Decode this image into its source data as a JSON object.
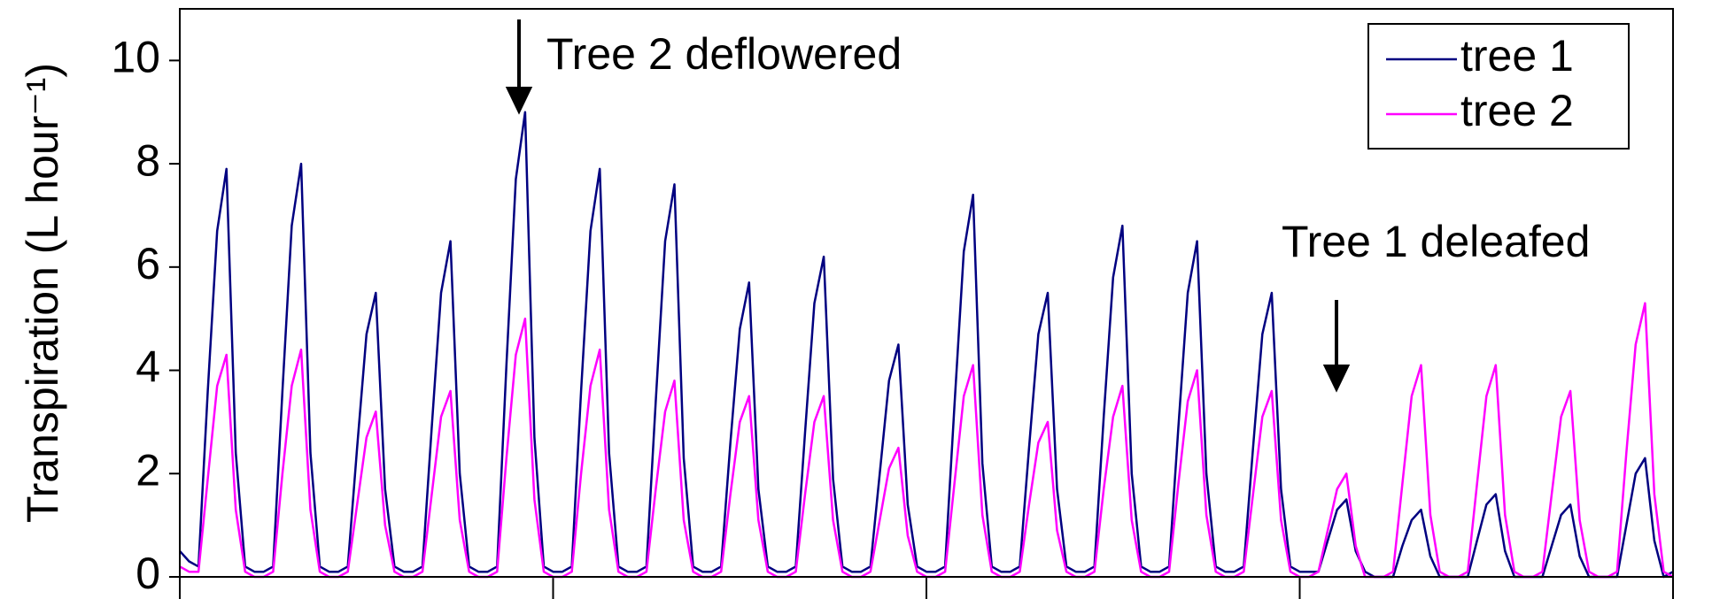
{
  "chart_data": {
    "type": "line",
    "y_label": "Transpiration (L hour⁻¹)",
    "annotations": [
      "Tree 2 deflowered",
      "Tree 1 deleafed"
    ],
    "x": [
      0,
      0.125,
      0.25,
      0.375,
      0.5,
      0.625,
      0.75,
      0.875,
      1,
      1.125,
      1.25,
      1.375,
      1.5,
      1.625,
      1.75,
      1.875,
      2,
      2.125,
      2.25,
      2.375,
      2.5,
      2.625,
      2.75,
      2.875,
      3,
      3.125,
      3.25,
      3.375,
      3.5,
      3.625,
      3.75,
      3.875,
      4,
      4.125,
      4.25,
      4.375,
      4.5,
      4.625,
      4.75,
      4.875,
      5,
      5.125,
      5.25,
      5.375,
      5.5,
      5.625,
      5.75,
      5.875,
      6,
      6.125,
      6.25,
      6.375,
      6.5,
      6.625,
      6.75,
      6.875,
      7,
      7.125,
      7.25,
      7.375,
      7.5,
      7.625,
      7.75,
      7.875,
      8,
      8.125,
      8.25,
      8.375,
      8.5,
      8.625,
      8.75,
      8.875,
      9,
      9.125,
      9.25,
      9.375,
      9.5,
      9.625,
      9.75,
      9.875,
      10,
      10.125,
      10.25,
      10.375,
      10.5,
      10.625,
      10.75,
      10.875,
      11,
      11.125,
      11.25,
      11.375,
      11.5,
      11.625,
      11.75,
      11.875,
      12,
      12.125,
      12.25,
      12.375,
      12.5,
      12.625,
      12.75,
      12.875,
      13,
      13.125,
      13.25,
      13.375,
      13.5,
      13.625,
      13.75,
      13.875,
      14,
      14.125,
      14.25,
      14.375,
      14.5,
      14.625,
      14.75,
      14.875,
      15,
      15.125,
      15.25,
      15.375,
      15.5,
      15.625,
      15.75,
      15.875,
      16,
      16.125,
      16.25,
      16.375,
      16.5,
      16.625,
      16.75,
      16.875,
      17,
      17.125,
      17.25,
      17.375,
      17.5,
      17.625,
      17.75,
      17.875,
      18,
      18.125,
      18.25,
      18.375,
      18.5,
      18.625,
      18.75,
      18.875,
      19,
      19.125,
      19.25,
      19.375,
      19.5,
      19.625,
      19.75,
      19.875,
      20
    ],
    "series": [
      {
        "name": "tree 1",
        "color": "#000080",
        "values": [
          0.5,
          0.3,
          0.2,
          3.6,
          6.7,
          7.9,
          2.4,
          0.2,
          0.1,
          0.1,
          0.2,
          3.6,
          6.8,
          8,
          2.4,
          0.2,
          0.1,
          0.1,
          0.2,
          2.5,
          4.7,
          5.5,
          1.7,
          0.2,
          0.1,
          0.1,
          0.2,
          2.9,
          5.5,
          6.5,
          2,
          0.2,
          0.1,
          0.1,
          0.2,
          4.1,
          7.7,
          9,
          2.7,
          0.2,
          0.1,
          0.1,
          0.2,
          3.6,
          6.7,
          7.9,
          2.4,
          0.2,
          0.1,
          0.1,
          0.2,
          3.4,
          6.5,
          7.6,
          2.3,
          0.2,
          0.1,
          0.1,
          0.2,
          2.6,
          4.8,
          5.7,
          1.7,
          0.2,
          0.1,
          0.1,
          0.2,
          2.8,
          5.3,
          6.2,
          1.9,
          0.2,
          0.1,
          0.1,
          0.2,
          2,
          3.8,
          4.5,
          1.4,
          0.2,
          0.1,
          0.1,
          0.2,
          3.3,
          6.3,
          7.4,
          2.2,
          0.2,
          0.1,
          0.1,
          0.2,
          2.5,
          4.7,
          5.5,
          1.7,
          0.2,
          0.1,
          0.1,
          0.2,
          3.1,
          5.8,
          6.8,
          2,
          0.2,
          0.1,
          0.1,
          0.2,
          2.9,
          5.5,
          6.5,
          2,
          0.2,
          0.1,
          0.1,
          0.2,
          2.5,
          4.7,
          5.5,
          1.7,
          0.2,
          0.1,
          0.1,
          0.1,
          0.7,
          1.3,
          1.5,
          0.5,
          0.1,
          0,
          0,
          0,
          0.6,
          1.1,
          1.3,
          0.4,
          0,
          0,
          0,
          0,
          0.7,
          1.4,
          1.6,
          0.5,
          0,
          0,
          0,
          0,
          0.6,
          1.2,
          1.4,
          0.4,
          0,
          0,
          0,
          0,
          1,
          2,
          2.3,
          0.7,
          0,
          0.1
        ]
      },
      {
        "name": "tree 2",
        "color": "#ff00ff",
        "values": [
          0.2,
          0.1,
          0.1,
          1.9,
          3.7,
          4.3,
          1.3,
          0.1,
          0,
          0,
          0.1,
          2,
          3.7,
          4.4,
          1.3,
          0.1,
          0,
          0,
          0.1,
          1.4,
          2.7,
          3.2,
          1,
          0.1,
          0,
          0,
          0.1,
          1.6,
          3.1,
          3.6,
          1.1,
          0.1,
          0,
          0,
          0.1,
          2.3,
          4.3,
          5,
          1.5,
          0.1,
          0,
          0,
          0.1,
          2,
          3.7,
          4.4,
          1.3,
          0.1,
          0,
          0,
          0.1,
          1.7,
          3.2,
          3.8,
          1.1,
          0.1,
          0,
          0,
          0.1,
          1.6,
          3,
          3.5,
          1.1,
          0.1,
          0,
          0,
          0.1,
          1.6,
          3,
          3.5,
          1.1,
          0.1,
          0,
          0,
          0.1,
          1.1,
          2.1,
          2.5,
          0.8,
          0.1,
          0,
          0,
          0.1,
          1.8,
          3.5,
          4.1,
          1.2,
          0.1,
          0,
          0,
          0.1,
          1.4,
          2.6,
          3,
          0.9,
          0.1,
          0,
          0,
          0.1,
          1.7,
          3.1,
          3.7,
          1.1,
          0.1,
          0,
          0,
          0.1,
          1.8,
          3.4,
          4,
          1.2,
          0.1,
          0,
          0,
          0.1,
          1.6,
          3.1,
          3.6,
          1.1,
          0.1,
          0,
          0,
          0.1,
          0.9,
          1.7,
          2,
          0.6,
          0,
          0,
          0,
          0.1,
          1.8,
          3.5,
          4.1,
          1.2,
          0.1,
          0,
          0,
          0.1,
          1.8,
          3.5,
          4.1,
          1.2,
          0.1,
          0,
          0,
          0.1,
          1.6,
          3.1,
          3.6,
          1.1,
          0.1,
          0,
          0,
          0.1,
          2.4,
          4.5,
          5.3,
          1.6,
          0.1,
          0
        ]
      }
    ],
    "xlim": [
      0,
      20
    ],
    "xticks": [
      0,
      5,
      10,
      15,
      20
    ],
    "ylim": [
      0,
      11
    ],
    "yticks": [
      0,
      2,
      4,
      6,
      8,
      10
    ],
    "legend": "top-right"
  }
}
